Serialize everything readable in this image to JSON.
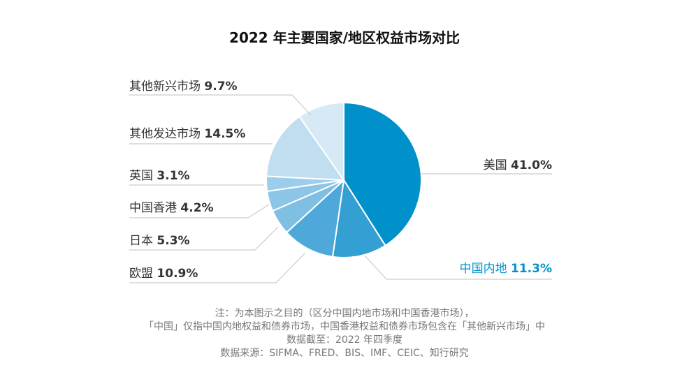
{
  "chart_data": {
    "type": "pie",
    "title": "2022 年主要国家/地区权益市场对比",
    "slices": [
      {
        "label": "美国",
        "value": 41.0,
        "display": "41.0%",
        "color": "#0091cb"
      },
      {
        "label": "中国内地",
        "value": 11.3,
        "display": "11.3%",
        "color": "#339fd3",
        "label_color": "#0091cb"
      },
      {
        "label": "欧盟",
        "value": 10.9,
        "display": "10.9%",
        "color": "#4ea9da"
      },
      {
        "label": "日本",
        "value": 5.3,
        "display": "5.3%",
        "color": "#7fbfe4"
      },
      {
        "label": "中国香港",
        "value": 4.2,
        "display": "4.2%",
        "color": "#8cc5e6"
      },
      {
        "label": "英国",
        "value": 3.1,
        "display": "3.1%",
        "color": "#9ccdea"
      },
      {
        "label": "其他发达市场",
        "value": 14.5,
        "display": "14.5%",
        "color": "#c0def0"
      },
      {
        "label": "其他新兴市场",
        "value": 9.7,
        "display": "9.7%",
        "color": "#d6e9f5"
      }
    ],
    "start": "top",
    "direction": "clockwise"
  },
  "notes": [
    "注：为本图示之目的（区分中国内地市场和中国香港市场），",
    "「中国」仅指中国内地权益和债券市场，中国香港权益和债券市场包含在「其他新兴市场」中",
    "数据截至：2022 年四季度",
    "数据来源：SIFMA、FRED、BIS、IMF、CEIC、知行研究"
  ]
}
